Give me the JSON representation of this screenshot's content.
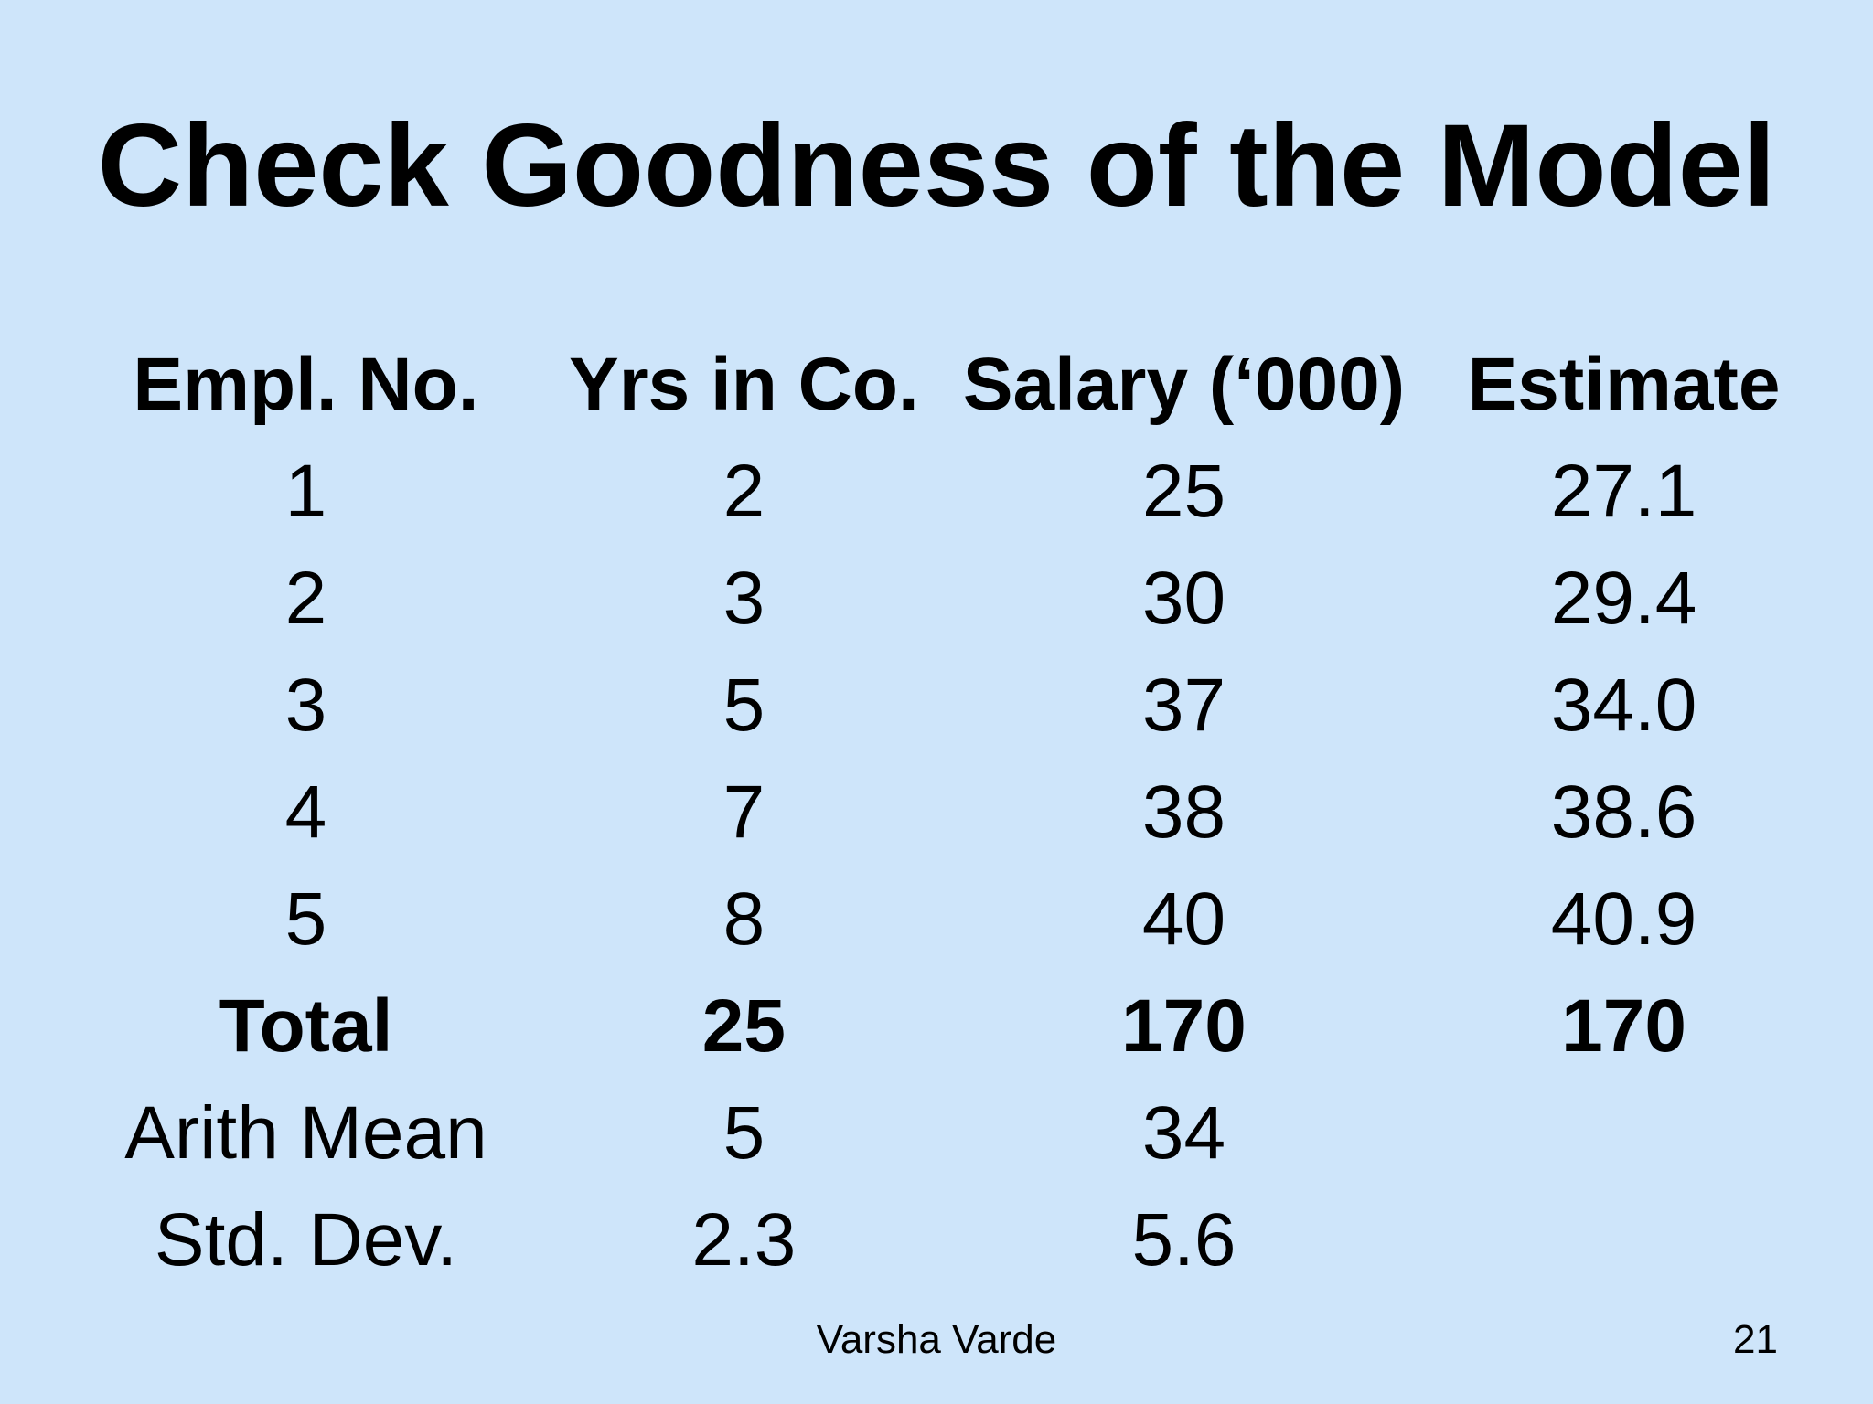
{
  "slide": {
    "title": "Check Goodness of the Model",
    "background_color": "#cee5fa",
    "text_color": "#000000"
  },
  "table": {
    "columns": [
      "Empl. No.",
      "Yrs in Co.",
      "Salary (‘000)",
      "Estimate"
    ],
    "rows": [
      {
        "empl": "1",
        "yrs": "2",
        "salary": "25",
        "estimate": "27.1"
      },
      {
        "empl": "2",
        "yrs": "3",
        "salary": "30",
        "estimate": "29.4"
      },
      {
        "empl": "3",
        "yrs": "5",
        "salary": "37",
        "estimate": "34.0"
      },
      {
        "empl": "4",
        "yrs": "7",
        "salary": "38",
        "estimate": "38.6"
      },
      {
        "empl": "5",
        "yrs": "8",
        "salary": "40",
        "estimate": "40.9"
      },
      {
        "empl": "Total",
        "yrs": "25",
        "salary": "170",
        "estimate": "170"
      },
      {
        "empl": "Arith Mean",
        "yrs": "5",
        "salary": "34",
        "estimate": ""
      },
      {
        "empl": "Std. Dev.",
        "yrs": "2.3",
        "salary": "5.6",
        "estimate": ""
      }
    ]
  },
  "footer": {
    "author": "Varsha Varde",
    "page_number": "21"
  }
}
